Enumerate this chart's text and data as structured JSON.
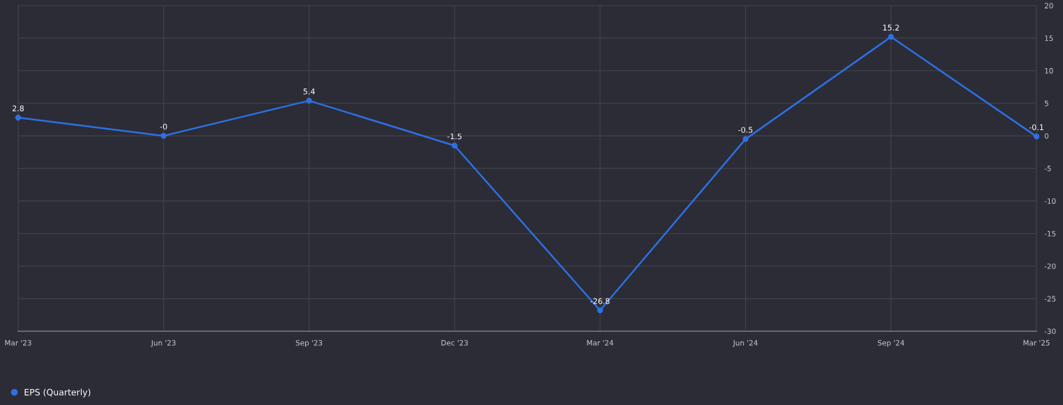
{
  "chart_data": {
    "type": "line",
    "categories": [
      "Mar '23",
      "Jun '23",
      "Sep '23",
      "Dec '23",
      "Mar '24",
      "Jun '24",
      "Sep '24",
      "Mar '25"
    ],
    "series": [
      {
        "name": "EPS (Quarterly)",
        "color": "#2e6fe3",
        "values": [
          2.8,
          0,
          5.4,
          -1.5,
          -26.8,
          -0.5,
          15.2,
          -0.1
        ],
        "value_labels": [
          "2.8",
          "-0",
          "5.4",
          "-1.5",
          "-26.8",
          "-0.5",
          "15.2",
          "-0.1"
        ]
      }
    ],
    "ylim": [
      -30,
      20
    ],
    "yticks": [
      -30,
      -25,
      -20,
      -15,
      -10,
      -5,
      0,
      5,
      10,
      15,
      20
    ],
    "grid": true,
    "legend": "bottom left",
    "marker": "circle",
    "line_style": "solid"
  }
}
